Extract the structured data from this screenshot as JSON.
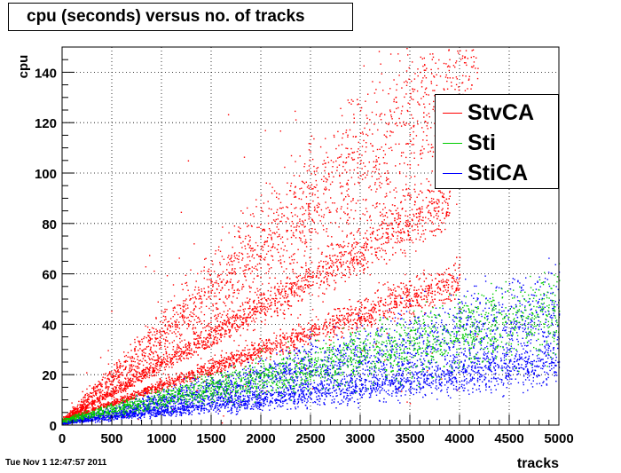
{
  "chart_data": {
    "type": "scatter",
    "title": "cpu (seconds) versus no. of tracks",
    "xlabel": "tracks",
    "ylabel": "cpu",
    "xlim": [
      0,
      5000
    ],
    "ylim": [
      0,
      150
    ],
    "x_ticks": [
      0,
      500,
      1000,
      1500,
      2000,
      2500,
      3000,
      3500,
      4000,
      4500,
      5000
    ],
    "y_ticks": [
      0,
      20,
      40,
      60,
      80,
      100,
      120,
      140
    ],
    "grid": true,
    "legend_position": "top-right",
    "series": [
      {
        "name": "StvCA",
        "color": "#ff0000",
        "bands": [
          {
            "x": [
              0,
              4200
            ],
            "y_start": 2,
            "y_end": 145,
            "spread": 0.14
          },
          {
            "x": [
              0,
              3900
            ],
            "y_start": 2,
            "y_end": 90,
            "spread": 0.07
          },
          {
            "x": [
              0,
              4000
            ],
            "y_start": 2,
            "y_end": 58,
            "spread": 0.07
          }
        ]
      },
      {
        "name": "Sti",
        "color": "#00cc00",
        "bands": [
          {
            "x": [
              0,
              5000
            ],
            "y_start": 2,
            "y_end": 45,
            "spread": 0.2
          }
        ]
      },
      {
        "name": "StiCA",
        "color": "#0000ff",
        "bands": [
          {
            "x": [
              0,
              5000
            ],
            "y_start": 1,
            "y_end": 45,
            "spread": 0.22
          },
          {
            "x": [
              0,
              5000
            ],
            "y_start": 1,
            "y_end": 25,
            "spread": 0.2
          }
        ]
      }
    ]
  },
  "footer": {
    "timestamp": "Tue Nov  1 12:47:57 2011"
  }
}
